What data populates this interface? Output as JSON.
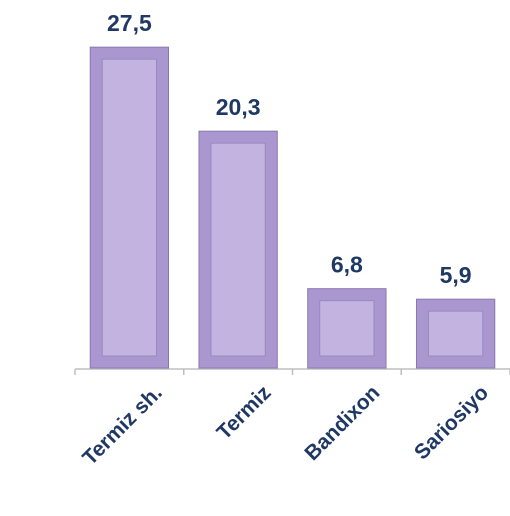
{
  "chart_data": {
    "type": "bar",
    "categories": [
      "Termiz sh.",
      "Termiz",
      "Bandixon",
      "Sariosiyo"
    ],
    "values": [
      27.5,
      20.3,
      6.8,
      5.9
    ],
    "value_labels": [
      "27,5",
      "20,3",
      "6,8",
      "5,9"
    ],
    "color": "#ab97cf",
    "ylim": [
      0,
      30
    ]
  }
}
